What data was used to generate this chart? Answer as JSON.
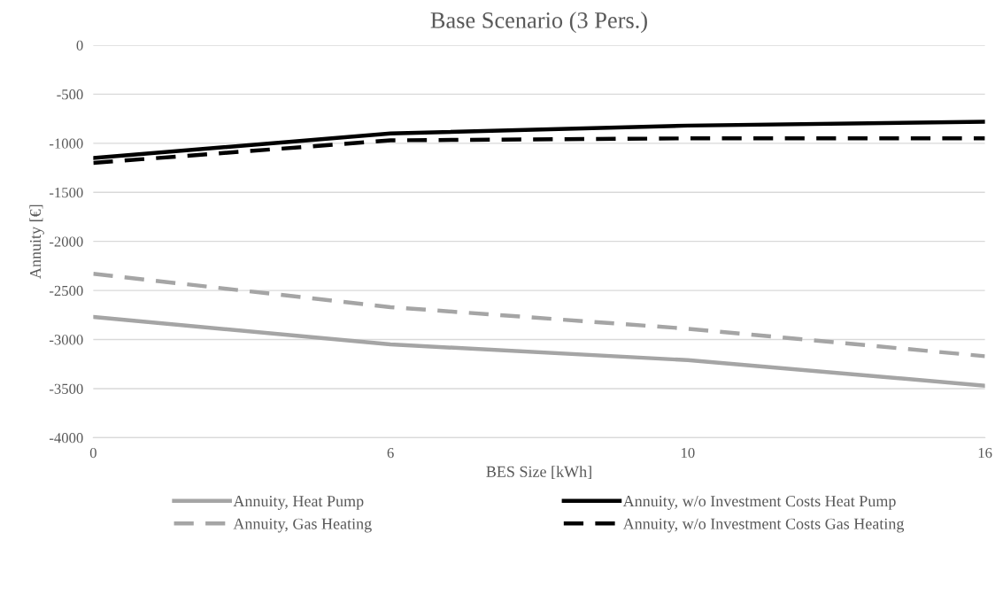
{
  "chart_data": {
    "type": "line",
    "title": "Base Scenario (3 Pers.)",
    "xlabel": "BES Size [kWh]",
    "ylabel": "Annuity [€]",
    "categories": [
      "0",
      "6",
      "10",
      "16"
    ],
    "series": [
      {
        "name": "Annuity, Heat Pump",
        "color": "#a5a5a5",
        "line_style": "solid",
        "values": [
          -2770,
          -3050,
          -3210,
          -3470
        ]
      },
      {
        "name": "Annuity, w/o Investment Costs Heat Pump",
        "color": "#000000",
        "line_style": "solid",
        "values": [
          -1150,
          -900,
          -820,
          -780
        ]
      },
      {
        "name": "Annuity, Gas Heating",
        "color": "#a5a5a5",
        "line_style": "dashed",
        "values": [
          -2330,
          -2670,
          -2890,
          -3170
        ]
      },
      {
        "name": "Annuity, w/o Investment Costs Gas Heating",
        "color": "#000000",
        "line_style": "dashed",
        "values": [
          -1200,
          -970,
          -950,
          -950
        ]
      }
    ],
    "ylim": [
      -4000,
      0
    ],
    "yticks": [
      -4000,
      -3500,
      -3000,
      -2500,
      -2000,
      -1500,
      -1000,
      -500,
      0
    ],
    "grid": "y",
    "legend": "bottom",
    "marker": "none"
  }
}
